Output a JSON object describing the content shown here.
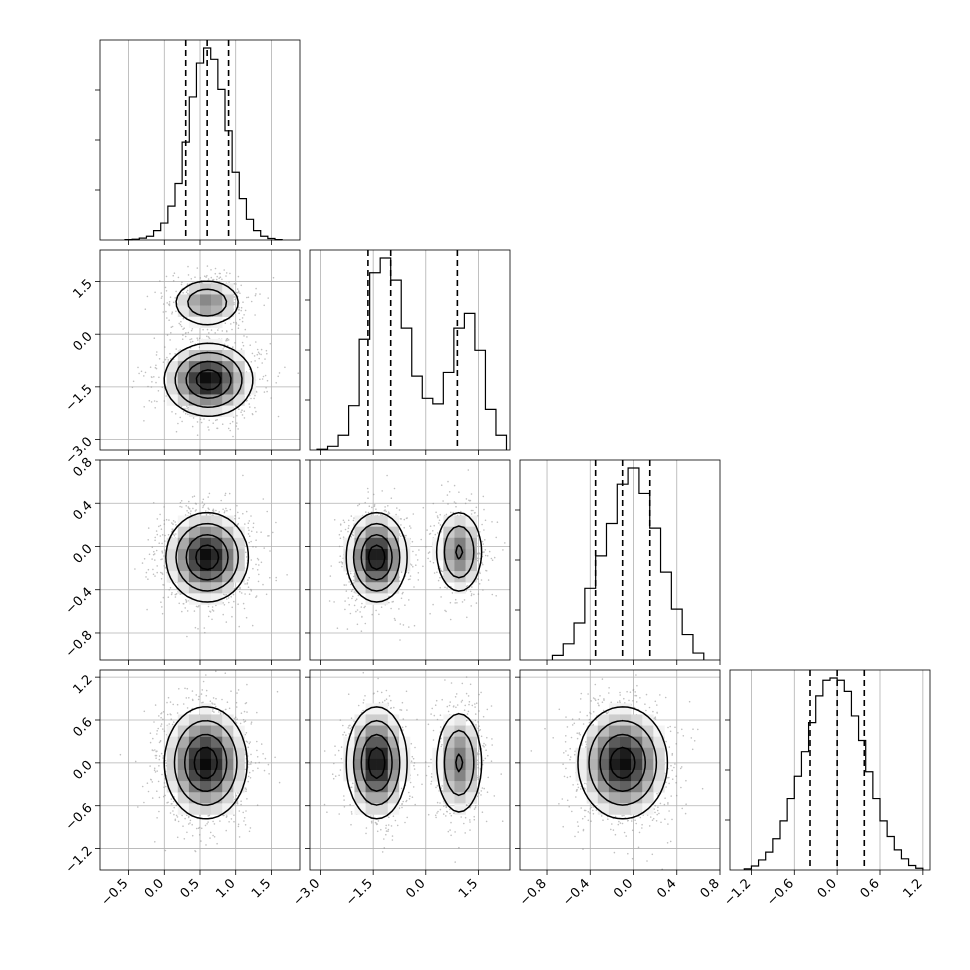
{
  "chart_data": {
    "type": "corner",
    "grid": true,
    "parameters": [
      {
        "range": [
          -0.9,
          1.9
        ],
        "ticks": [
          -0.5,
          0.0,
          0.5,
          1.0,
          1.5
        ],
        "tick_labels": [
          "−0.5",
          "0.0",
          "0.5",
          "1.0",
          "1.5"
        ],
        "quantile_lines": [
          0.3,
          0.6,
          0.9
        ],
        "histogram": {
          "edges": [
            -0.55,
            -0.45,
            -0.35,
            -0.25,
            -0.15,
            -0.05,
            0.05,
            0.15,
            0.25,
            0.35,
            0.45,
            0.55,
            0.65,
            0.75,
            0.85,
            0.95,
            1.05,
            1.15,
            1.25,
            1.35,
            1.45,
            1.55,
            1.65
          ],
          "counts": [
            1,
            2,
            5,
            10,
            25,
            45,
            90,
            150,
            260,
            380,
            470,
            510,
            480,
            400,
            290,
            180,
            110,
            55,
            25,
            10,
            4,
            1
          ]
        }
      },
      {
        "range": [
          -3.3,
          2.4
        ],
        "ticks": [
          -3.0,
          -1.5,
          0.0,
          1.5
        ],
        "tick_labels": [
          "−3.0",
          "−1.5",
          "0.0",
          "1.5"
        ],
        "quantile_lines": [
          -1.65,
          -1.0,
          0.9
        ],
        "histogram": {
          "edges": [
            -3.1,
            -2.8,
            -2.5,
            -2.2,
            -1.9,
            -1.6,
            -1.3,
            -1.0,
            -0.7,
            -0.4,
            -0.1,
            0.2,
            0.5,
            0.8,
            1.1,
            1.4,
            1.7,
            2.0,
            2.3
          ],
          "counts": [
            2,
            10,
            40,
            120,
            300,
            480,
            520,
            460,
            330,
            200,
            140,
            125,
            210,
            330,
            370,
            270,
            110,
            40
          ]
        }
      },
      {
        "range": [
          -1.05,
          0.8
        ],
        "ticks": [
          -0.8,
          -0.4,
          0.0,
          0.4,
          0.8
        ],
        "tick_labels": [
          "−0.8",
          "−0.4",
          "0.0",
          "0.4",
          "0.8"
        ],
        "quantile_lines": [
          -0.35,
          -0.1,
          0.15
        ],
        "histogram": {
          "edges": [
            -0.75,
            -0.65,
            -0.55,
            -0.45,
            -0.35,
            -0.25,
            -0.15,
            -0.05,
            0.05,
            0.15,
            0.25,
            0.35,
            0.45,
            0.55,
            0.65
          ],
          "counts": [
            20,
            70,
            160,
            310,
            450,
            590,
            760,
            830,
            720,
            570,
            380,
            220,
            110,
            30
          ]
        }
      },
      {
        "range": [
          -1.5,
          1.3
        ],
        "ticks": [
          -1.2,
          -0.6,
          0.0,
          0.6,
          1.2
        ],
        "tick_labels": [
          "−1.2",
          "−0.6",
          "0.0",
          "0.6",
          "1.2"
        ],
        "quantile_lines": [
          -0.38,
          0.0,
          0.38
        ],
        "histogram": {
          "edges": [
            -1.3,
            -1.2,
            -1.1,
            -1.0,
            -0.9,
            -0.8,
            -0.7,
            -0.6,
            -0.5,
            -0.4,
            -0.3,
            -0.2,
            -0.1,
            0.0,
            0.1,
            0.2,
            0.3,
            0.4,
            0.5,
            0.6,
            0.7,
            0.8,
            0.9,
            1.0,
            1.1,
            1.2
          ],
          "counts": [
            5,
            18,
            45,
            80,
            140,
            220,
            320,
            420,
            530,
            660,
            780,
            850,
            860,
            850,
            800,
            690,
            580,
            440,
            320,
            220,
            150,
            90,
            50,
            20,
            8
          ]
        }
      }
    ],
    "joint_distributions": [
      {
        "x_param": 0,
        "y_param": 1,
        "modes": [
          {
            "cx": 0.62,
            "cy": -1.3,
            "sx": 0.3,
            "sy": 0.5,
            "w": 0.65
          },
          {
            "cx": 0.6,
            "cy": 0.9,
            "sx": 0.25,
            "sy": 0.35,
            "w": 0.35
          }
        ]
      },
      {
        "x_param": 0,
        "y_param": 2,
        "modes": [
          {
            "cx": 0.6,
            "cy": -0.1,
            "sx": 0.28,
            "sy": 0.2,
            "w": 1.0
          }
        ]
      },
      {
        "x_param": 1,
        "y_param": 2,
        "modes": [
          {
            "cx": -1.4,
            "cy": -0.1,
            "sx": 0.42,
            "sy": 0.2,
            "w": 0.62
          },
          {
            "cx": 0.95,
            "cy": -0.05,
            "sx": 0.35,
            "sy": 0.2,
            "w": 0.38
          }
        ]
      },
      {
        "x_param": 0,
        "y_param": 3,
        "modes": [
          {
            "cx": 0.58,
            "cy": 0.0,
            "sx": 0.28,
            "sy": 0.38,
            "w": 1.0
          }
        ]
      },
      {
        "x_param": 1,
        "y_param": 3,
        "modes": [
          {
            "cx": -1.4,
            "cy": 0.0,
            "sx": 0.42,
            "sy": 0.38,
            "w": 0.62
          },
          {
            "cx": 0.95,
            "cy": 0.0,
            "sx": 0.35,
            "sy": 0.38,
            "w": 0.38
          }
        ]
      },
      {
        "x_param": 2,
        "y_param": 3,
        "modes": [
          {
            "cx": -0.1,
            "cy": 0.0,
            "sx": 0.2,
            "sy": 0.38,
            "w": 1.0
          }
        ]
      }
    ],
    "contour_levels": [
      0.12,
      0.3,
      0.58,
      0.85
    ],
    "colors": {
      "contour": "#000000",
      "density_min": "#ffffff",
      "density_max": "#000000",
      "scatter": "#8c8c8c",
      "grid": "#b0b0b0",
      "quantile_line": "#000000"
    }
  }
}
